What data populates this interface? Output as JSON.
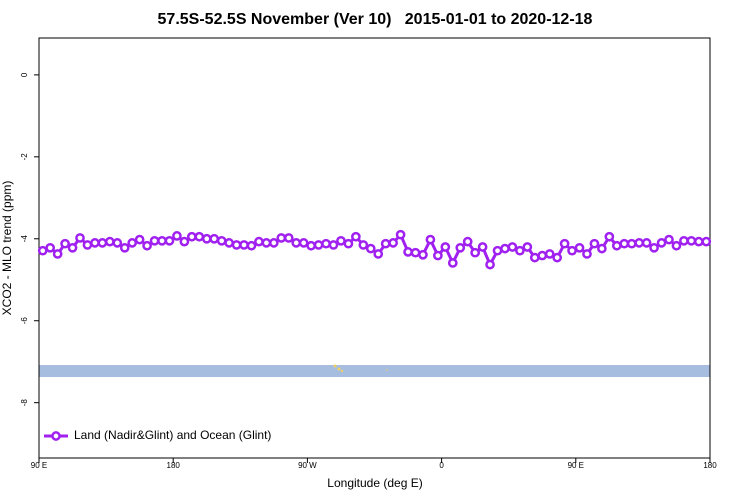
{
  "chart_data": {
    "type": "line",
    "title": "57.5S-52.5S November (Ver 10)   2015-01-01 to 2020-12-18",
    "x_label": "Longitude (deg E)",
    "y_label": "XCO2 - MLO trend (ppm)",
    "x": [
      92.5,
      97.5,
      102.5,
      107.5,
      112.5,
      117.5,
      122.5,
      127.5,
      132.5,
      137.5,
      142.5,
      147.5,
      152.5,
      157.5,
      162.5,
      167.5,
      172.5,
      177.5,
      182.5,
      187.5,
      192.5,
      197.5,
      202.5,
      207.5,
      212.5,
      217.5,
      222.5,
      227.5,
      232.5,
      237.5,
      242.5,
      247.5,
      252.5,
      257.5,
      262.5,
      267.5,
      272.5,
      277.5,
      282.5,
      287.5,
      292.5,
      297.5,
      302.5,
      307.5,
      312.5,
      317.5,
      322.5,
      327.5,
      332.5,
      337.5,
      342.5,
      347.5,
      352.5,
      357.5,
      362.5,
      367.5,
      372.5,
      377.5,
      382.5,
      387.5,
      392.5,
      397.5,
      402.5,
      407.5,
      412.5,
      417.5,
      422.5,
      427.5,
      432.5,
      437.5,
      442.5,
      447.5,
      452.5,
      457.5,
      462.5,
      467.5,
      472.5,
      477.5,
      482.5,
      487.5,
      492.5,
      497.5,
      502.5,
      507.5,
      512.5,
      517.5,
      522.5,
      527.5,
      532.5,
      537.5
    ],
    "series": [
      {
        "name": "Land (Nadir&Glint) and Ocean (Glint)",
        "color": "#a020f0",
        "values": [
          -4.29,
          -4.22,
          -4.37,
          -4.12,
          -4.22,
          -3.98,
          -4.15,
          -4.1,
          -4.1,
          -4.07,
          -4.1,
          -4.22,
          -4.1,
          -4.02,
          -4.17,
          -4.05,
          -4.05,
          -4.05,
          -3.93,
          -4.07,
          -3.95,
          -3.95,
          -4.0,
          -4.0,
          -4.05,
          -4.1,
          -4.15,
          -4.15,
          -4.17,
          -4.07,
          -4.1,
          -4.1,
          -3.98,
          -3.98,
          -4.1,
          -4.1,
          -4.17,
          -4.15,
          -4.12,
          -4.15,
          -4.05,
          -4.12,
          -3.95,
          -4.15,
          -4.24,
          -4.37,
          -4.12,
          -4.1,
          -3.9,
          -4.32,
          -4.34,
          -4.39,
          -4.02,
          -4.41,
          -4.2,
          -4.59,
          -4.22,
          -4.07,
          -4.34,
          -4.2,
          -4.63,
          -4.29,
          -4.24,
          -4.2,
          -4.29,
          -4.2,
          -4.46,
          -4.41,
          -4.37,
          -4.46,
          -4.12,
          -4.29,
          -4.22,
          -4.37,
          -4.12,
          -4.24,
          -3.95,
          -4.17,
          -4.12,
          -4.12,
          -4.1,
          -4.1,
          -4.22,
          -4.1,
          -4.02,
          -4.17,
          -4.05,
          -4.05,
          -4.07,
          -4.07
        ]
      }
    ],
    "xlim": [
      90,
      540
    ],
    "ylim": [
      -9.35,
      0.9
    ],
    "xticks": [
      {
        "value": 90,
        "label": "90 E"
      },
      180,
      {
        "value": 270,
        "label": "90 W"
      },
      {
        "value": 360,
        "label": "0"
      },
      {
        "value": 450,
        "label": "90 E"
      },
      {
        "value": 540,
        "label": "180"
      }
    ],
    "yticks": [
      -8,
      -6,
      -4,
      -2,
      0
    ],
    "legend": "bottom-left"
  }
}
